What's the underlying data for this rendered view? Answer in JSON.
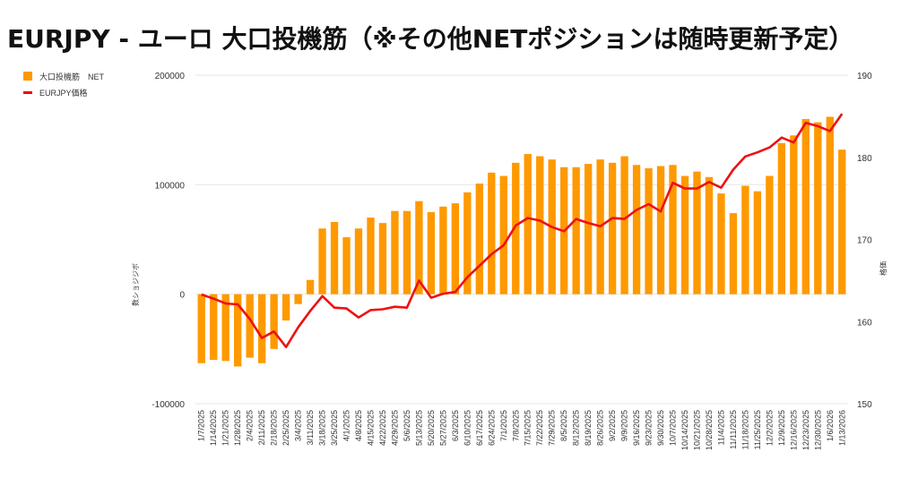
{
  "title": "EURJPY - ユーロ 大口投機筋（※その他NETポジションは随時更新予定）",
  "legend": {
    "bar_label": "大口投機筋　NET",
    "line_label": "EURJPY価格"
  },
  "colors": {
    "bar": "#ff9900",
    "line": "#ee1111"
  },
  "chart_data": {
    "type": "bar+line",
    "title": "EURJPY - ユーロ 大口投機筋（※その他NETポジションは随時更新予定）",
    "ylabel_left": "数ショジジボ",
    "ylabel_right": "格価",
    "ylim_left": [
      -100000,
      200000
    ],
    "ylim_right": [
      150,
      190
    ],
    "yticks_left": [
      "-100000",
      "0",
      "100000",
      "200000"
    ],
    "yticks_right": [
      "150",
      "160",
      "170",
      "180",
      "190"
    ],
    "legend_position": "top-left",
    "categories": [
      "1/7/2025",
      "1/14/2025",
      "1/21/2025",
      "1/28/2025",
      "2/4/2025",
      "2/11/2025",
      "2/18/2025",
      "2/25/2025",
      "3/4/2025",
      "3/11/2025",
      "3/18/2025",
      "3/25/2025",
      "4/1/2025",
      "4/8/2025",
      "4/15/2025",
      "4/22/2025",
      "4/29/2025",
      "5/6/2025",
      "5/13/2025",
      "5/20/2025",
      "5/27/2025",
      "6/3/2025",
      "6/10/2025",
      "6/17/2025",
      "6/24/2025",
      "7/1/2025",
      "7/8/2025",
      "7/15/2025",
      "7/22/2025",
      "7/29/2025",
      "8/5/2025",
      "8/12/2025",
      "8/19/2025",
      "8/26/2025",
      "9/2/2025",
      "9/9/2025",
      "9/16/2025",
      "9/23/2025",
      "9/30/2025",
      "10/7/2025",
      "10/14/2025",
      "10/21/2025",
      "10/28/2025",
      "11/4/2025",
      "11/11/2025",
      "11/18/2025",
      "11/25/2025",
      "12/2/2025",
      "12/9/2025",
      "12/16/2025",
      "12/23/2025",
      "12/30/2025",
      "1/6/2026",
      "1/13/2026"
    ],
    "x_tick_labels": [
      "1/7/2025",
      "1/14/2025",
      "1/21/2025",
      "1/28/2025",
      "2/4/2025",
      "2/11/2025",
      "2/18/2025",
      "2/25/2025",
      "3/4/2025",
      "3/11/2025",
      "3/18/2025",
      "3/25/2025",
      "4/1/2025",
      "4/8/2025",
      "4/15/2025",
      "4/22/2025",
      "4/29/2025",
      "5/6/2025",
      "5/13/2025",
      "5/20/2025",
      "5/27/2025",
      "6/3/2025",
      "6/10/2025",
      "6/17/2025",
      "6/24/2025",
      "7/1/2025",
      "7/8/2025",
      "7/15/2025",
      "7/22/2025",
      "7/29/2025",
      "8/5/2025",
      "8/12/2025",
      "8/19/2025",
      "8/26/2025",
      "9/2/2025",
      "9/9/2025",
      "9/16/2025",
      "9/23/2025",
      "9/30/2025",
      "10/7/2025",
      "10/14/2025",
      "10/21/2025",
      "10/28/2025",
      "11/4/2025",
      "11/11/2025",
      "11/18/2025",
      "11/25/2025",
      "12/2/2025",
      "12/9/2025",
      "12/16/2025",
      "12/23/2025",
      "12/30/2025",
      "1/6/2026",
      "1/13/2026"
    ],
    "series": [
      {
        "name": "大口投機筋　NET",
        "type": "bar",
        "axis": "left",
        "values": [
          -63000,
          -60000,
          -61000,
          -66000,
          -58000,
          -63000,
          -50000,
          -24000,
          -9000,
          13000,
          60000,
          66000,
          52000,
          60000,
          70000,
          65000,
          76000,
          76000,
          85000,
          75000,
          80000,
          83000,
          93000,
          101000,
          111000,
          108000,
          120000,
          128000,
          126000,
          123000,
          116000,
          116000,
          119000,
          123000,
          120000,
          126000,
          118000,
          115000,
          117000,
          118000,
          108000,
          112000,
          107000,
          92000,
          74000,
          99000,
          94000,
          108000,
          138000,
          145000,
          160000,
          157000,
          162000,
          132000
        ]
      },
      {
        "name": "EURJPY価格",
        "type": "line",
        "axis": "right",
        "values": [
          163.3,
          162.8,
          162.2,
          162.1,
          160.3,
          158.0,
          158.8,
          156.9,
          159.3,
          161.3,
          163.1,
          161.7,
          161.6,
          160.5,
          161.4,
          161.5,
          161.8,
          161.7,
          165.0,
          162.9,
          163.4,
          163.6,
          165.4,
          166.8,
          168.2,
          169.3,
          171.7,
          172.6,
          172.3,
          171.5,
          171.0,
          172.5,
          172.0,
          171.6,
          172.6,
          172.5,
          173.6,
          174.3,
          173.4,
          176.9,
          176.2,
          176.2,
          177.0,
          176.3,
          178.5,
          180.1,
          180.6,
          181.2,
          182.4,
          181.8,
          184.2,
          183.8,
          183.2,
          185.3
        ]
      }
    ]
  }
}
